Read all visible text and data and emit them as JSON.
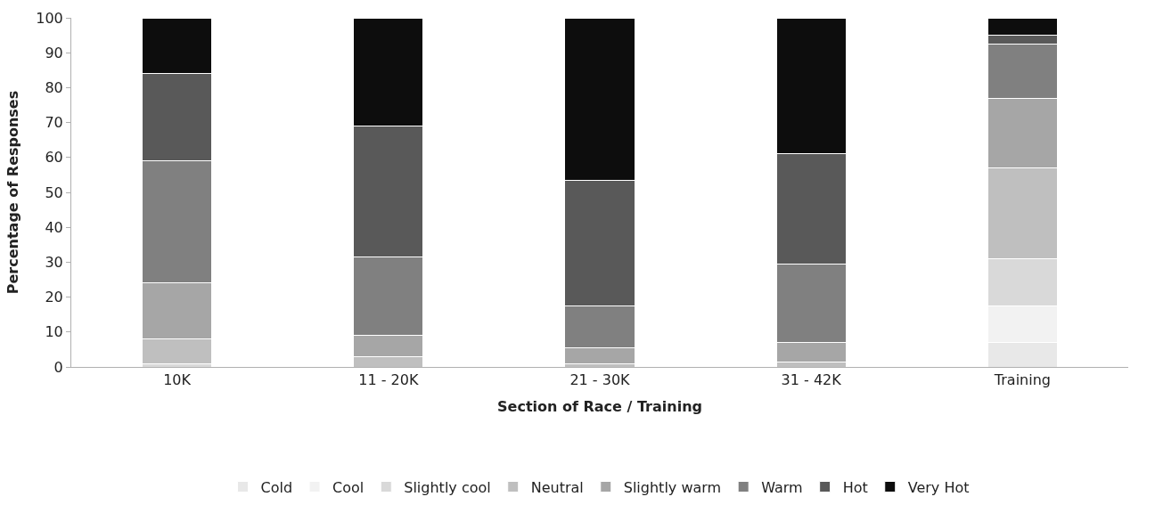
{
  "chart_data": {
    "type": "bar",
    "stacked": true,
    "xlabel": "Section of Race / Training",
    "ylabel": "Percentage of Responses",
    "categories": [
      "10K",
      "11 - 20K",
      "21 - 30K",
      "31 - 42K",
      "Training"
    ],
    "ylim": [
      0,
      100
    ],
    "yticks": [
      0,
      10,
      20,
      30,
      40,
      50,
      60,
      70,
      80,
      90,
      100
    ],
    "legend": "bottom",
    "series": [
      {
        "name": "Cold",
        "color": "#e8e8e8",
        "values": [
          0,
          0,
          0,
          0,
          7
        ]
      },
      {
        "name": "Cool",
        "color": "#f2f2f2",
        "values": [
          0,
          0,
          0,
          0,
          10.5
        ]
      },
      {
        "name": "Slightly cool",
        "color": "#d9d9d9",
        "values": [
          1,
          0,
          0,
          0,
          13.5
        ]
      },
      {
        "name": "Neutral",
        "color": "#bfbfbf",
        "values": [
          7,
          3,
          1,
          1.5,
          26
        ]
      },
      {
        "name": "Slightly warm",
        "color": "#a6a6a6",
        "values": [
          16,
          6,
          4.5,
          5.5,
          20
        ]
      },
      {
        "name": "Warm",
        "color": "#808080",
        "values": [
          35,
          22.5,
          12,
          22.5,
          15.5
        ]
      },
      {
        "name": "Hot",
        "color": "#595959",
        "values": [
          25,
          37.5,
          36,
          31.5,
          2.5
        ]
      },
      {
        "name": "Very Hot",
        "color": "#0d0d0d",
        "values": [
          16,
          31,
          46.5,
          39,
          5
        ]
      }
    ]
  }
}
